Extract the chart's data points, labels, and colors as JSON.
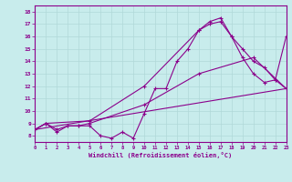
{
  "xlabel": "Windchill (Refroidissement éolien,°C)",
  "xlim": [
    0,
    23
  ],
  "ylim": [
    7.5,
    18.5
  ],
  "xticks": [
    0,
    1,
    2,
    3,
    4,
    5,
    6,
    7,
    8,
    9,
    10,
    11,
    12,
    13,
    14,
    15,
    16,
    17,
    18,
    19,
    20,
    21,
    22,
    23
  ],
  "yticks": [
    8,
    9,
    10,
    11,
    12,
    13,
    14,
    15,
    16,
    17,
    18
  ],
  "background_color": "#c8ecec",
  "grid_color": "#b0d8d8",
  "line_color": "#8b008b",
  "line1_x": [
    0,
    1,
    2,
    3,
    4,
    5,
    6,
    7,
    8,
    9,
    10,
    11,
    12,
    13,
    14,
    15,
    16,
    17,
    18,
    19,
    20,
    21,
    22,
    23
  ],
  "line1_y": [
    8.5,
    9.0,
    8.3,
    8.8,
    8.8,
    8.8,
    8.0,
    7.8,
    8.3,
    7.8,
    9.8,
    11.8,
    11.8,
    14.0,
    15.0,
    16.5,
    17.2,
    17.5,
    16.0,
    14.3,
    13.0,
    12.3,
    12.5,
    11.8
  ],
  "line2_x": [
    0,
    1,
    2,
    3,
    4,
    5,
    10,
    15,
    20,
    23
  ],
  "line2_y": [
    8.5,
    9.0,
    8.5,
    8.8,
    8.8,
    9.0,
    10.5,
    13.0,
    14.3,
    11.8
  ],
  "line3_x": [
    0,
    1,
    5,
    10,
    15,
    16,
    17,
    18,
    19,
    20,
    21,
    22,
    23
  ],
  "line3_y": [
    8.5,
    9.0,
    9.2,
    12.0,
    16.5,
    17.0,
    17.2,
    16.0,
    15.0,
    14.0,
    13.5,
    12.5,
    16.0
  ],
  "line4_x": [
    0,
    23
  ],
  "line4_y": [
    8.5,
    11.8
  ]
}
